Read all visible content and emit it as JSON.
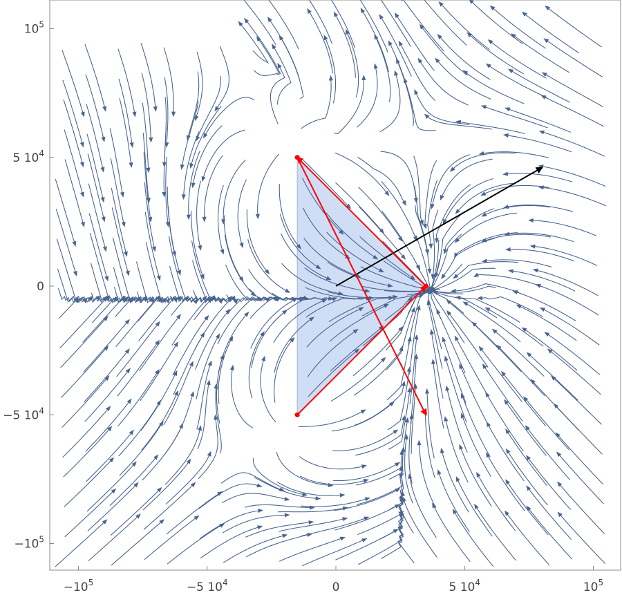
{
  "chart_data": {
    "type": "streamplot",
    "title": "",
    "xlabel": "",
    "ylabel": "",
    "xlim": [
      -110000,
      110000
    ],
    "ylim": [
      -110000,
      105000
    ],
    "x_ticks": [
      {
        "value": -100000,
        "mantissa": "−10",
        "exponent": "5"
      },
      {
        "value": -50000,
        "mantissa": "−5 10",
        "exponent": "4"
      },
      {
        "value": 0,
        "mantissa": "0",
        "exponent": ""
      },
      {
        "value": 50000,
        "mantissa": "5 10",
        "exponent": "4"
      },
      {
        "value": 100000,
        "mantissa": "10",
        "exponent": "5"
      }
    ],
    "y_ticks": [
      {
        "value": 100000,
        "mantissa": "10",
        "exponent": "5"
      },
      {
        "value": 50000,
        "mantissa": "5 10",
        "exponent": "4"
      },
      {
        "value": 0,
        "mantissa": "0",
        "exponent": ""
      },
      {
        "value": -50000,
        "mantissa": "−5 10",
        "exponent": "4"
      },
      {
        "value": -100000,
        "mantissa": "−10",
        "exponent": "5"
      }
    ],
    "stream_color": "#4a6590",
    "region": {
      "color": "#c7d7f3",
      "polygon": [
        [
          -15000,
          50000
        ],
        [
          35000,
          0
        ],
        [
          -15000,
          -50000
        ]
      ]
    },
    "triangle_vertices": [
      [
        -15000,
        50000
      ],
      [
        35000,
        0
      ],
      [
        -15000,
        -50000
      ]
    ],
    "red_vectors": [
      {
        "from": [
          -15000,
          -50000
        ],
        "to": [
          35000,
          0
        ]
      },
      {
        "from": [
          35000,
          0
        ],
        "to": [
          -15000,
          50000
        ]
      },
      {
        "from": [
          -15000,
          50000
        ],
        "to": [
          35000,
          -50000
        ]
      }
    ],
    "black_vector": {
      "from": [
        0,
        0
      ],
      "to": [
        80000,
        46000
      ]
    },
    "colors": {
      "red": "#ff0000",
      "black": "#000000",
      "frame": "#888888"
    },
    "grid": false
  }
}
